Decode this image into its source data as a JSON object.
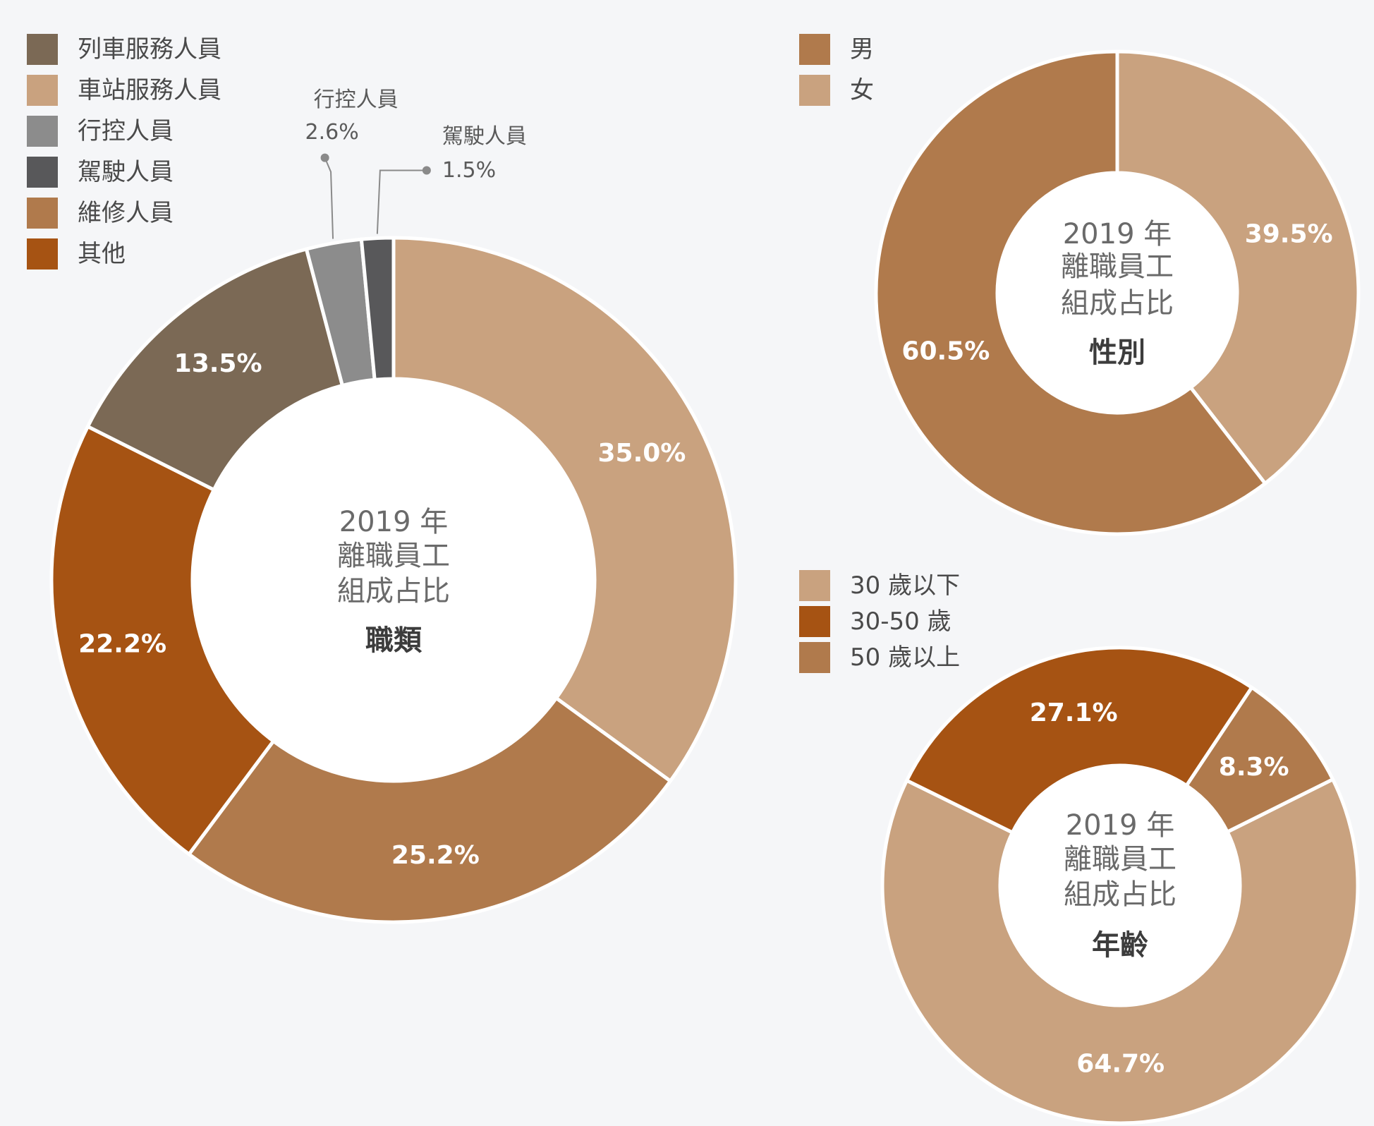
{
  "chart_data": [
    {
      "type": "pie",
      "id": "job",
      "center_text": [
        "2019 年",
        "離職員工",
        "組成占比"
      ],
      "center_subtitle": "職類",
      "legend": [
        "列車服務人員",
        "車站服務人員",
        "行控人員",
        "駕駛人員",
        "維修人員",
        "其他"
      ],
      "slices": [
        {
          "name": "車站服務人員",
          "value": 35.0,
          "label": "35.0%",
          "color": "#c9a27f"
        },
        {
          "name": "維修人員",
          "value": 25.2,
          "label": "25.2%",
          "color": "#b07a4c"
        },
        {
          "name": "其他",
          "value": 22.2,
          "label": "22.2%",
          "color": "#a65313"
        },
        {
          "name": "列車服務人員",
          "value": 13.5,
          "label": "13.5%",
          "color": "#7b6955"
        },
        {
          "name": "行控人員",
          "value": 2.6,
          "label": "2.6%",
          "callout_name": "行控人員",
          "color": "#8c8c8c"
        },
        {
          "name": "駕駛人員",
          "value": 1.5,
          "label": "1.5%",
          "callout_name": "駕駛人員",
          "color": "#58585a"
        }
      ]
    },
    {
      "type": "pie",
      "id": "gender",
      "center_text": [
        "2019 年",
        "離職員工",
        "組成占比"
      ],
      "center_subtitle": "性別",
      "legend": [
        "男",
        "女"
      ],
      "slices": [
        {
          "name": "女",
          "value": 39.5,
          "label": "39.5%",
          "color": "#c9a27f"
        },
        {
          "name": "男",
          "value": 60.5,
          "label": "60.5%",
          "color": "#b07a4c"
        }
      ]
    },
    {
      "type": "pie",
      "id": "age",
      "center_text": [
        "2019 年",
        "離職員工",
        "組成占比"
      ],
      "center_subtitle": "年齡",
      "legend": [
        "30 歲以下",
        "30-50 歲",
        "50 歲以上"
      ],
      "slices": [
        {
          "name": "30 歲以下",
          "value": 64.7,
          "label": "64.7%",
          "color": "#c9a27f"
        },
        {
          "name": "30-50 歲",
          "value": 27.1,
          "label": "27.1%",
          "color": "#a65313"
        },
        {
          "name": "50 歲以上",
          "value": 8.3,
          "label": "8.3%",
          "color": "#b07a4c"
        }
      ]
    }
  ],
  "legend_colors": {
    "列車服務人員": "#7b6955",
    "車站服務人員": "#c9a27f",
    "行控人員": "#8c8c8c",
    "駕駛人員": "#58585a",
    "維修人員": "#b07a4c",
    "其他": "#a65313",
    "男": "#b07a4c",
    "女": "#c9a27f",
    "30 歲以下": "#c9a27f",
    "30-50 歲": "#a65313",
    "50 歲以上": "#b07a4c"
  }
}
